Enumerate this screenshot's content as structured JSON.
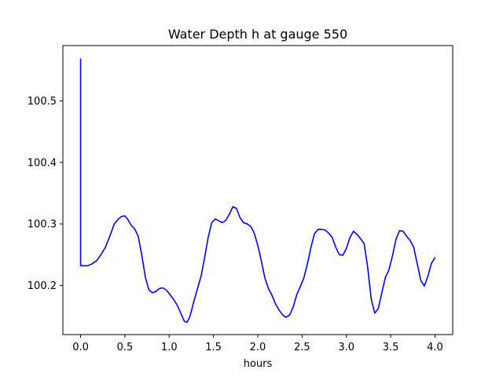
{
  "chart_data": {
    "type": "line",
    "title": "Water Depth h at gauge 550",
    "xlabel": "hours",
    "ylabel": "",
    "xlim": [
      -0.2,
      4.2
    ],
    "ylim": [
      100.12,
      100.59
    ],
    "xticks": [
      0.0,
      0.5,
      1.0,
      1.5,
      2.0,
      2.5,
      3.0,
      3.5,
      4.0
    ],
    "xtick_labels": [
      "0.0",
      "0.5",
      "1.0",
      "1.5",
      "2.0",
      "2.5",
      "3.0",
      "3.5",
      "4.0"
    ],
    "yticks": [
      100.2,
      100.3,
      100.4,
      100.5
    ],
    "ytick_labels": [
      "100.2",
      "100.3",
      "100.4",
      "100.5"
    ],
    "grid": false,
    "series": [
      {
        "color": "#0000ff",
        "x": [
          0.0,
          0.0,
          0.0,
          0.03,
          0.08,
          0.13,
          0.18,
          0.23,
          0.28,
          0.33,
          0.38,
          0.42,
          0.46,
          0.5,
          0.53,
          0.57,
          0.61,
          0.65,
          0.69,
          0.73,
          0.77,
          0.81,
          0.85,
          0.89,
          0.93,
          0.97,
          1.01,
          1.05,
          1.09,
          1.13,
          1.17,
          1.2,
          1.23,
          1.25,
          1.28,
          1.32,
          1.36,
          1.4,
          1.44,
          1.48,
          1.52,
          1.56,
          1.6,
          1.64,
          1.68,
          1.72,
          1.76,
          1.8,
          1.84,
          1.88,
          1.92,
          1.96,
          2.0,
          2.04,
          2.08,
          2.12,
          2.16,
          2.2,
          2.24,
          2.28,
          2.32,
          2.36,
          2.4,
          2.44,
          2.48,
          2.52,
          2.56,
          2.6,
          2.64,
          2.68,
          2.72,
          2.76,
          2.8,
          2.84,
          2.88,
          2.92,
          2.96,
          3.0,
          3.04,
          3.08,
          3.12,
          3.16,
          3.2,
          3.24,
          3.28,
          3.32,
          3.36,
          3.4,
          3.44,
          3.48,
          3.52,
          3.56,
          3.6,
          3.64,
          3.68,
          3.72,
          3.76,
          3.8,
          3.84,
          3.88,
          3.92,
          3.96,
          4.0
        ],
        "y": [
          100.568,
          100.232,
          100.232,
          100.232,
          100.232,
          100.235,
          100.24,
          100.25,
          100.262,
          100.28,
          100.3,
          100.307,
          100.312,
          100.313,
          100.308,
          100.298,
          100.292,
          100.28,
          100.25,
          100.214,
          100.193,
          100.188,
          100.19,
          100.195,
          100.196,
          100.192,
          100.185,
          100.177,
          100.168,
          100.155,
          100.142,
          100.14,
          100.148,
          100.158,
          100.175,
          100.195,
          100.215,
          100.245,
          100.278,
          100.302,
          100.308,
          100.305,
          100.302,
          100.306,
          100.316,
          100.328,
          100.325,
          100.31,
          100.302,
          100.3,
          100.296,
          100.285,
          100.265,
          100.24,
          100.212,
          100.195,
          100.184,
          100.17,
          100.16,
          100.152,
          100.148,
          100.152,
          100.165,
          100.185,
          100.198,
          100.212,
          100.235,
          100.262,
          100.284,
          100.291,
          100.291,
          100.29,
          100.285,
          100.278,
          100.262,
          100.25,
          100.249,
          100.26,
          100.278,
          100.288,
          100.283,
          100.276,
          100.268,
          100.23,
          100.178,
          100.155,
          100.162,
          100.188,
          100.213,
          100.225,
          100.248,
          100.275,
          100.289,
          100.288,
          100.28,
          100.273,
          100.262,
          100.235,
          100.208,
          100.199,
          100.215,
          100.236,
          100.245
        ]
      }
    ]
  }
}
